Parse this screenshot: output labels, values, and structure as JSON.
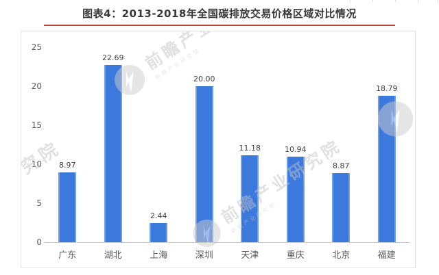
{
  "header": {
    "title": "图表4：2013-2018年全国碳排放交易价格区域对比情况",
    "underline_color": "#bc4440"
  },
  "watermark": {
    "text": "前瞻产业研究院"
  },
  "chart_data": {
    "type": "bar",
    "title": "图表4：2013-2018年全国碳排放交易价格区域对比情况",
    "categories": [
      "广东",
      "湖北",
      "上海",
      "深圳",
      "天津",
      "重庆",
      "北京",
      "福建"
    ],
    "values": [
      8.97,
      22.69,
      2.44,
      20.0,
      11.18,
      10.94,
      8.87,
      18.79
    ],
    "value_labels": [
      "8.97",
      "22.69",
      "2.44",
      "20.00",
      "11.18",
      "10.94",
      "8.87",
      "18.79"
    ],
    "xlabel": "",
    "ylabel": "",
    "ylim": [
      0,
      25
    ],
    "yticks": [
      25,
      20,
      15,
      10,
      5,
      0
    ],
    "grid": false,
    "legend_position": "none",
    "bar_color": "#3c79dd",
    "axis_line_color": "#c9c9c9",
    "tick_label_color": "#595959",
    "value_label_color": "#3f3f3f"
  }
}
